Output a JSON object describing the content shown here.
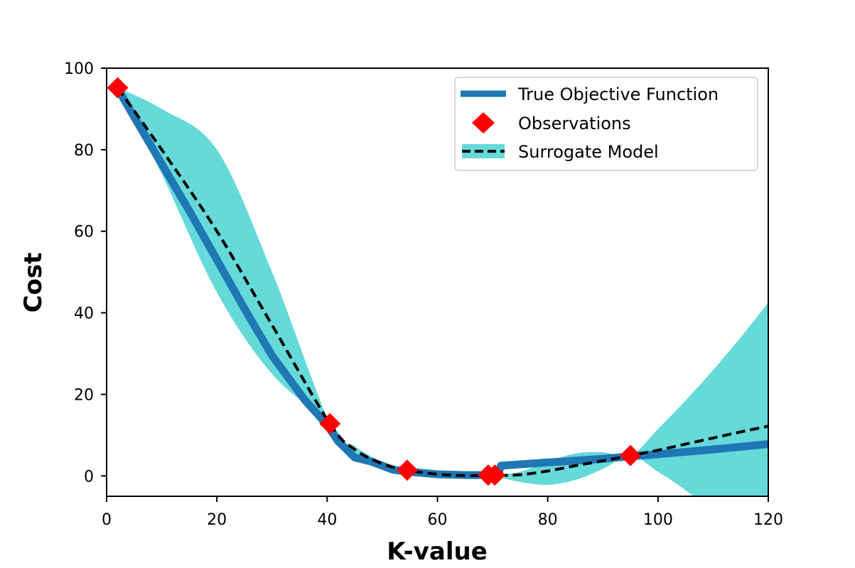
{
  "chart_data": {
    "type": "line",
    "title": "",
    "xlabel": "K-value",
    "ylabel": "Cost",
    "xlim": [
      0,
      120
    ],
    "ylim": [
      -5,
      100
    ],
    "x_ticks": [
      0,
      20,
      40,
      60,
      80,
      100,
      120
    ],
    "y_ticks": [
      0,
      20,
      40,
      60,
      80,
      100
    ],
    "grid": false,
    "legend_position": "top-right",
    "series": [
      {
        "name": "True Objective Function",
        "kind": "line",
        "color": "#1f77b4",
        "x": [
          2,
          5,
          10,
          15,
          20,
          25,
          30,
          36,
          40,
          42,
          45,
          48,
          52,
          55,
          60,
          65,
          70,
          71,
          71.5,
          80,
          90,
          95,
          100,
          110,
          120
        ],
        "y": [
          95,
          88,
          76.5,
          65,
          53,
          41,
          29.5,
          18.5,
          12.5,
          8.5,
          4.5,
          3.5,
          1.5,
          1.0,
          0.4,
          0.2,
          0.2,
          0.2,
          2.5,
          3.3,
          4.2,
          4.8,
          5.3,
          6.5,
          7.8
        ]
      },
      {
        "name": "Observations",
        "kind": "scatter",
        "color": "#ff0000",
        "x": [
          2,
          40.5,
          54.5,
          69.2,
          70.4,
          95
        ],
        "y": [
          95.2,
          12.8,
          1.4,
          0.2,
          0.2,
          5
        ]
      },
      {
        "name": "Surrogate Model",
        "kind": "dashed-line-with-band",
        "color": "#000000",
        "band_color": "#66d9d9",
        "x": [
          2,
          10,
          20,
          30,
          40.5,
          45,
          50,
          54.5,
          60,
          65,
          70,
          75,
          80,
          85,
          90,
          95,
          100,
          105,
          110,
          115,
          120
        ],
        "y": [
          95.2,
          80,
          60,
          37,
          12.8,
          6.5,
          3.0,
          1.4,
          0.4,
          0.1,
          0.1,
          0.3,
          1.2,
          2.5,
          3.7,
          5.0,
          6.3,
          7.8,
          9.3,
          10.8,
          12.2
        ],
        "upper": [
          95.2,
          90,
          80,
          50,
          12.8,
          7.3,
          3.4,
          1.4,
          0.8,
          0.6,
          0.3,
          1.0,
          3.5,
          5.5,
          5.8,
          5.0,
          11.5,
          18.5,
          26.0,
          34.0,
          42.5
        ],
        "lower": [
          95.2,
          74,
          45,
          25,
          12.8,
          5.6,
          2.6,
          1.4,
          0.0,
          -0.2,
          -0.1,
          -1.5,
          -2.2,
          -1.0,
          1.7,
          5.0,
          1.0,
          -3.5,
          -9.0,
          -15.0,
          -21.0
        ]
      }
    ]
  }
}
